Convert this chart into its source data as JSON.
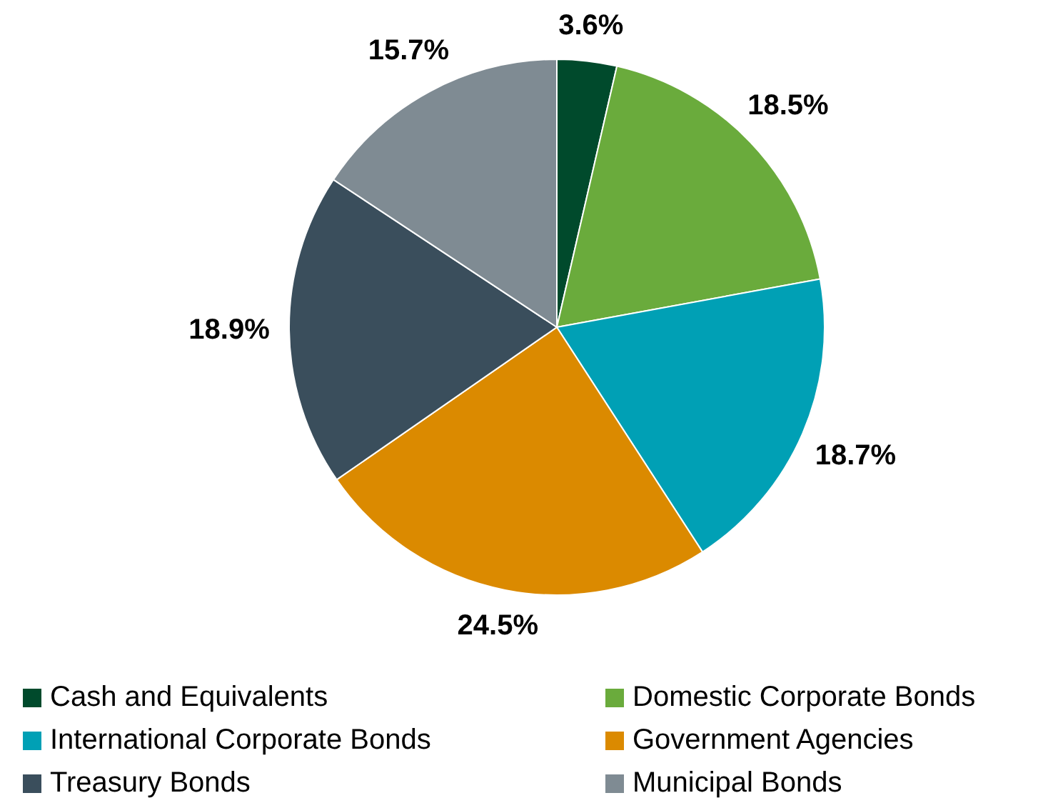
{
  "chart_data": {
    "type": "pie",
    "categories": [
      "Cash and Equivalents",
      "Domestic Corporate Bonds",
      "International Corporate Bonds",
      "Government Agencies",
      "Treasury Bonds",
      "Municipal Bonds"
    ],
    "values": [
      3.6,
      18.5,
      18.7,
      24.5,
      18.9,
      15.7
    ],
    "colors": [
      "#004a2c",
      "#6aab3c",
      "#00a0b5",
      "#db8a00",
      "#3a4e5c",
      "#7f8b93"
    ],
    "value_labels": [
      "3.6%",
      "18.5%",
      "18.7%",
      "24.5%",
      "18.9%",
      "15.7%"
    ],
    "legend": "bottom"
  }
}
